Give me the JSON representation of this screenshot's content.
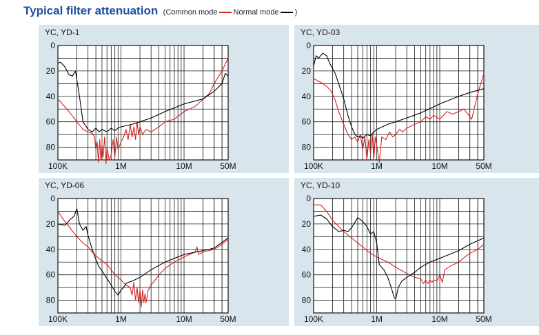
{
  "title": "Typical filter attenuation",
  "legend": {
    "open": "(Common mode",
    "common_color": "#d62020",
    "sep": "Normal mode",
    "normal_color": "#000000",
    "close": ")"
  },
  "chart_data": [
    {
      "type": "line",
      "title": "YC, YD-1",
      "x_scale": "log",
      "xlim": [
        100000,
        50000000
      ],
      "ylim": [
        0,
        90
      ],
      "y_inverted": true,
      "x_ticks": [
        "100K",
        "1M",
        "10M",
        "50M"
      ],
      "y_ticks": [
        "0",
        "20",
        "40",
        "60",
        "80"
      ],
      "series": [
        {
          "name": "Common mode",
          "color": "#d62020",
          "x": [
            100000,
            150000,
            200000,
            250000,
            300000,
            350000,
            380000,
            400000,
            420000,
            440000,
            460000,
            480000,
            500000,
            520000,
            550000,
            580000,
            600000,
            650000,
            700000,
            750000,
            800000,
            850000,
            900000,
            1000000,
            1100000,
            1200000,
            1300000,
            1400000,
            1500000,
            1600000,
            1700000,
            1800000,
            1900000,
            2000000,
            2200000,
            2500000,
            3000000,
            4000000,
            5000000,
            7000000,
            10000000,
            15000000,
            20000000,
            25000000,
            30000000,
            40000000,
            50000000
          ],
          "y": [
            42,
            52,
            60,
            66,
            68,
            69,
            72,
            82,
            76,
            92,
            74,
            90,
            78,
            88,
            72,
            93,
            80,
            90,
            86,
            74,
            88,
            72,
            82,
            76,
            72,
            66,
            74,
            62,
            72,
            64,
            74,
            60,
            70,
            64,
            70,
            66,
            68,
            64,
            60,
            58,
            52,
            48,
            42,
            38,
            30,
            20,
            10
          ]
        },
        {
          "name": "Normal mode",
          "color": "#000000",
          "x": [
            100000,
            110000,
            130000,
            150000,
            170000,
            190000,
            200000,
            220000,
            250000,
            300000,
            350000,
            400000,
            450000,
            500000,
            600000,
            700000,
            800000,
            900000,
            1000000,
            1500000,
            2000000,
            3000000,
            5000000,
            10000000,
            20000000,
            30000000,
            40000000,
            45000000,
            50000000
          ],
          "y": [
            14,
            13,
            17,
            23,
            24,
            20,
            27,
            40,
            60,
            66,
            68,
            65,
            68,
            66,
            68,
            65,
            67,
            65,
            64,
            62,
            60,
            57,
            52,
            46,
            42,
            36,
            30,
            22,
            24
          ]
        }
      ]
    },
    {
      "type": "line",
      "title": "YC, YD-03",
      "x_scale": "log",
      "xlim": [
        100000,
        50000000
      ],
      "ylim": [
        0,
        90
      ],
      "y_inverted": true,
      "x_ticks": [
        "100K",
        "1M",
        "10M",
        "50M"
      ],
      "y_ticks": [
        "0",
        "20",
        "40",
        "60",
        "80"
      ],
      "series": [
        {
          "name": "Common mode",
          "color": "#d62020",
          "x": [
            100000,
            130000,
            160000,
            190000,
            220000,
            250000,
            300000,
            350000,
            400000,
            450000,
            500000,
            550000,
            600000,
            650000,
            700000,
            750000,
            800000,
            850000,
            900000,
            950000,
            1000000,
            1100000,
            1200000,
            1400000,
            1600000,
            1800000,
            2000000,
            2300000,
            2600000,
            3000000,
            4000000,
            5000000,
            6000000,
            7000000,
            8000000,
            10000000,
            13000000,
            16000000,
            20000000,
            24000000,
            28000000,
            32000000,
            40000000,
            50000000
          ],
          "y": [
            26,
            29,
            32,
            36,
            43,
            52,
            62,
            70,
            74,
            72,
            76,
            70,
            82,
            72,
            90,
            74,
            85,
            70,
            90,
            72,
            78,
            92,
            72,
            74,
            68,
            72,
            70,
            66,
            68,
            65,
            62,
            60,
            56,
            58,
            55,
            58,
            52,
            54,
            52,
            50,
            54,
            58,
            38,
            22
          ]
        },
        {
          "name": "Normal mode",
          "color": "#000000",
          "x": [
            100000,
            110000,
            120000,
            140000,
            160000,
            180000,
            200000,
            220000,
            250000,
            300000,
            350000,
            400000,
            450000,
            500000,
            550000,
            600000,
            700000,
            800000,
            900000,
            1000000,
            1500000,
            2000000,
            3000000,
            5000000,
            10000000,
            20000000,
            30000000,
            50000000
          ],
          "y": [
            16,
            8,
            10,
            6,
            8,
            14,
            18,
            22,
            30,
            42,
            55,
            64,
            70,
            72,
            71,
            73,
            70,
            71,
            68,
            66,
            62,
            60,
            57,
            53,
            46,
            40,
            37,
            34
          ]
        }
      ]
    },
    {
      "type": "line",
      "title": "YC, YD-06",
      "x_scale": "log",
      "xlim": [
        100000,
        50000000
      ],
      "ylim": [
        0,
        90
      ],
      "y_inverted": true,
      "x_ticks": [
        "100K",
        "1M",
        "10M",
        "50M"
      ],
      "y_ticks": [
        "0",
        "20",
        "40",
        "60",
        "80"
      ],
      "series": [
        {
          "name": "Common mode",
          "color": "#d62020",
          "x": [
            100000,
            120000,
            150000,
            200000,
            250000,
            300000,
            350000,
            400000,
            500000,
            600000,
            700000,
            800000,
            900000,
            1000000,
            1200000,
            1400000,
            1500000,
            1600000,
            1700000,
            1800000,
            1900000,
            2000000,
            2100000,
            2200000,
            2300000,
            2400000,
            2500000,
            2700000,
            3000000,
            3500000,
            4000000,
            5000000,
            7000000,
            10000000,
            15000000,
            16000000,
            17000000,
            20000000,
            30000000,
            40000000,
            50000000
          ],
          "y": [
            10,
            16,
            22,
            30,
            35,
            38,
            42,
            45,
            49,
            52,
            56,
            60,
            62,
            64,
            68,
            70,
            76,
            66,
            80,
            70,
            82,
            72,
            85,
            72,
            82,
            75,
            82,
            72,
            68,
            64,
            60,
            55,
            50,
            46,
            42,
            38,
            44,
            42,
            40,
            36,
            32
          ]
        },
        {
          "name": "Normal mode",
          "color": "#000000",
          "x": [
            100000,
            130000,
            160000,
            180000,
            200000,
            220000,
            250000,
            280000,
            300000,
            350000,
            400000,
            450000,
            500000,
            600000,
            700000,
            800000,
            900000,
            1000000,
            1100000,
            1200000,
            1300000,
            1500000,
            2000000,
            3000000,
            5000000,
            10000000,
            20000000,
            30000000,
            50000000
          ],
          "y": [
            20,
            21,
            16,
            14,
            8,
            20,
            25,
            22,
            29,
            40,
            48,
            54,
            57,
            63,
            68,
            73,
            76,
            72,
            70,
            67,
            66,
            65,
            62,
            56,
            50,
            44,
            41,
            39,
            31
          ]
        }
      ]
    },
    {
      "type": "line",
      "title": "YC, YD-10",
      "x_scale": "log",
      "xlim": [
        100000,
        50000000
      ],
      "ylim": [
        0,
        90
      ],
      "y_inverted": true,
      "x_ticks": [
        "100K",
        "1M",
        "10M",
        "50M"
      ],
      "y_ticks": [
        "0",
        "20",
        "40",
        "60",
        "80"
      ],
      "series": [
        {
          "name": "Common mode",
          "color": "#d62020",
          "x": [
            100000,
            130000,
            160000,
            200000,
            250000,
            300000,
            400000,
            500000,
            600000,
            700000,
            800000,
            1000000,
            1500000,
            2000000,
            3000000,
            4000000,
            5000000,
            5500000,
            6000000,
            6500000,
            7000000,
            7500000,
            8000000,
            9000000,
            10000000,
            11000000,
            12000000,
            15000000,
            20000000,
            25000000,
            30000000,
            40000000,
            50000000
          ],
          "y": [
            5,
            5,
            10,
            17,
            22,
            26,
            31,
            35,
            38,
            41,
            43,
            46,
            50,
            54,
            59,
            62,
            63,
            67,
            64,
            67,
            64,
            66,
            64,
            65,
            60,
            66,
            56,
            53,
            50,
            46,
            43,
            40,
            36
          ]
        },
        {
          "name": "Normal mode",
          "color": "#000000",
          "x": [
            100000,
            130000,
            160000,
            200000,
            250000,
            300000,
            350000,
            400000,
            500000,
            600000,
            700000,
            800000,
            900000,
            1000000,
            1100000,
            1300000,
            1500000,
            1700000,
            1900000,
            2000000,
            2200000,
            2500000,
            3000000,
            4000000,
            5000000,
            7000000,
            10000000,
            20000000,
            30000000,
            50000000
          ],
          "y": [
            14,
            13,
            16,
            22,
            26,
            25,
            26,
            23,
            15,
            18,
            22,
            28,
            26,
            35,
            52,
            56,
            62,
            70,
            78,
            79,
            70,
            65,
            62,
            58,
            54,
            50,
            47,
            41,
            36,
            31
          ]
        }
      ]
    }
  ]
}
